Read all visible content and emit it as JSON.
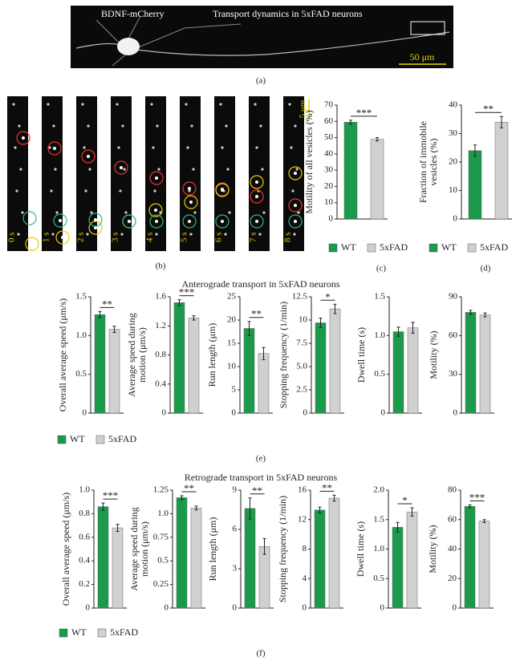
{
  "panel_a": {
    "label": "(a)",
    "left_text": "BDNF-mCherry",
    "title": "Transport dynamics in 5xFAD neurons",
    "scale_bar": "50 μm"
  },
  "panel_b": {
    "label": "(b)",
    "frames": [
      "0 s",
      "1 s",
      "2 s",
      "3 s",
      "4 s",
      "5 s",
      "6 s",
      "7 s",
      "8 s"
    ],
    "scale_bar": "5 μm"
  },
  "panels": [
    {
      "label": "(c)",
      "legend": [
        {
          "name": "WT",
          "color": "#1a9a4a"
        },
        {
          "name": "5xFAD",
          "color": "#d0d0d0"
        }
      ]
    },
    {
      "label": "(d)",
      "legend": [
        {
          "name": "WT",
          "color": "#1a9a4a"
        },
        {
          "name": "5xFAD",
          "color": "#d0d0d0"
        }
      ]
    },
    {
      "label": "(e)",
      "title": "Anterograde transport in 5xFAD neurons",
      "legend": [
        {
          "name": "WT",
          "color": "#1a9a4a"
        },
        {
          "name": "5xFAD",
          "color": "#d0d0d0"
        }
      ]
    },
    {
      "label": "(f)",
      "title": "Retrograde transport in 5xFAD neurons",
      "legend": [
        {
          "name": "WT",
          "color": "#1a9a4a"
        },
        {
          "name": "5xFAD",
          "color": "#d0d0d0"
        }
      ]
    }
  ],
  "chart_data": [
    {
      "type": "bar",
      "ylabel": [
        "Motility of all vesicles (%)"
      ],
      "values": [
        59.5,
        49
      ],
      "errors": [
        1.2,
        1
      ],
      "significance": "***",
      "ylim": [
        0,
        70
      ],
      "yticks": [
        0,
        10,
        20,
        30,
        40,
        50,
        60,
        70
      ]
    },
    {
      "type": "bar",
      "ylabel": [
        "Fraction of immobile",
        "vesicles (%)"
      ],
      "values": [
        24,
        34
      ],
      "errors": [
        2,
        2
      ],
      "significance": "**",
      "ylim": [
        0,
        40
      ],
      "yticks": [
        0,
        10,
        20,
        30,
        40
      ]
    },
    {
      "type": "bar",
      "ylabel": [
        "Overall average speed (μm/s)"
      ],
      "values": [
        1.27,
        1.08
      ],
      "errors": [
        0.04,
        0.04
      ],
      "significance": "**",
      "ylim": [
        0,
        1.5
      ],
      "yticks": [
        0,
        0.5,
        {
          "value": 1,
          "label": "1.0"
        },
        1.5
      ]
    },
    {
      "type": "bar",
      "ylabel": [
        "Average speed during",
        "motion (μm/s)"
      ],
      "values": [
        1.52,
        1.31
      ],
      "errors": [
        0.04,
        0.03
      ],
      "significance": "***",
      "ylim": [
        0,
        1.6
      ],
      "yticks": [
        0,
        0.4,
        0.8,
        1.2,
        1.6
      ]
    },
    {
      "type": "bar",
      "ylabel": [
        "Run length (μm)"
      ],
      "values": [
        18.2,
        12.8
      ],
      "errors": [
        1.5,
        1.3
      ],
      "significance": "**",
      "ylim": [
        0,
        25
      ],
      "yticks": [
        0,
        5,
        10,
        15,
        20,
        25
      ]
    },
    {
      "type": "bar",
      "ylabel": [
        "Stopping frequency (1/min)"
      ],
      "values": [
        9.7,
        11.2
      ],
      "errors": [
        0.5,
        0.5
      ],
      "significance": "*",
      "ylim": [
        0,
        12.5
      ],
      "yticks": [
        0,
        2.5,
        {
          "value": 5,
          "label": "5.0"
        },
        7.5,
        10,
        12.5
      ]
    },
    {
      "type": "bar",
      "ylabel": [
        "Dwell time (s)"
      ],
      "values": [
        1.05,
        1.1
      ],
      "errors": [
        0.06,
        0.07
      ],
      "ylim": [
        0,
        1.5
      ],
      "yticks": [
        0,
        0.5,
        {
          "value": 1,
          "label": "1.0"
        },
        1.5
      ]
    },
    {
      "type": "bar",
      "ylabel": [
        "Motility (%)"
      ],
      "values": [
        78,
        76
      ],
      "errors": [
        1.5,
        1.5
      ],
      "ylim": [
        0,
        90
      ],
      "yticks": [
        0,
        30,
        60,
        90
      ]
    },
    {
      "type": "bar",
      "ylabel": [
        "Overall average speed (μm/s)"
      ],
      "values": [
        0.86,
        0.68
      ],
      "errors": [
        0.03,
        0.03
      ],
      "significance": "***",
      "ylim": [
        0,
        1
      ],
      "yticks": [
        0,
        0.2,
        0.4,
        0.6,
        0.8,
        {
          "value": 1,
          "label": "1.0"
        }
      ]
    },
    {
      "type": "bar",
      "ylabel": [
        "Average speed during",
        "motion (μm/s)"
      ],
      "values": [
        1.17,
        1.06
      ],
      "errors": [
        0.02,
        0.02
      ],
      "significance": "**",
      "ylim": [
        0,
        1.25
      ],
      "yticks": [
        0,
        0.25,
        0.5,
        0.75,
        {
          "value": 1,
          "label": "1.0"
        },
        1.25
      ]
    },
    {
      "type": "bar",
      "ylabel": [
        "Run length (μm)"
      ],
      "values": [
        7.6,
        4.7
      ],
      "errors": [
        0.8,
        0.6
      ],
      "significance": "**",
      "ylim": [
        0,
        9
      ],
      "yticks": [
        0,
        3,
        6,
        9
      ]
    },
    {
      "type": "bar",
      "ylabel": [
        "Stopping frequency (1/min)"
      ],
      "values": [
        13.3,
        14.9
      ],
      "errors": [
        0.4,
        0.4
      ],
      "significance": "**",
      "ylim": [
        0,
        16
      ],
      "yticks": [
        0,
        4,
        8,
        12,
        16
      ]
    },
    {
      "type": "bar",
      "ylabel": [
        "Dwell time (s)"
      ],
      "values": [
        1.37,
        1.63
      ],
      "errors": [
        0.08,
        0.07
      ],
      "significance": "*",
      "ylim": [
        0,
        2
      ],
      "yticks": [
        0,
        0.5,
        {
          "value": 1,
          "label": "1.0"
        },
        1.5,
        {
          "value": 2,
          "label": "2.0"
        }
      ]
    },
    {
      "type": "bar",
      "ylabel": [
        "Motility (%)"
      ],
      "values": [
        69,
        59
      ],
      "errors": [
        1,
        1
      ],
      "significance": "***",
      "ylim": [
        0,
        80
      ],
      "yticks": [
        0,
        20,
        40,
        60,
        80
      ]
    }
  ]
}
